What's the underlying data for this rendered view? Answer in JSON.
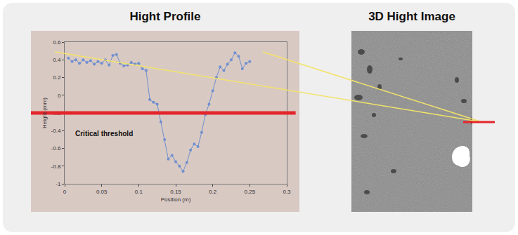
{
  "panels": [
    {
      "title": "Hight Profile"
    },
    {
      "title": "3D Hight Image"
    }
  ],
  "chart_data": {
    "type": "line",
    "color": "#6f8fcf",
    "marker": "circle",
    "grid": false,
    "x_label": "Position (m)",
    "y_label": "Height (mm)",
    "x": [
      0.005,
      0.01,
      0.015,
      0.02,
      0.025,
      0.03,
      0.035,
      0.04,
      0.045,
      0.05,
      0.055,
      0.06,
      0.065,
      0.07,
      0.075,
      0.08,
      0.085,
      0.09,
      0.095,
      0.1,
      0.105,
      0.11,
      0.115,
      0.12,
      0.125,
      0.13,
      0.135,
      0.14,
      0.145,
      0.15,
      0.155,
      0.16,
      0.165,
      0.17,
      0.175,
      0.18,
      0.185,
      0.19,
      0.195,
      0.2,
      0.205,
      0.21,
      0.215,
      0.22,
      0.225,
      0.23,
      0.235,
      0.24,
      0.245,
      0.25
    ],
    "values": [
      0.42,
      0.38,
      0.4,
      0.36,
      0.4,
      0.37,
      0.39,
      0.35,
      0.38,
      0.36,
      0.4,
      0.34,
      0.45,
      0.46,
      0.36,
      0.33,
      0.34,
      0.37,
      0.35,
      0.36,
      0.3,
      0.28,
      -0.05,
      -0.08,
      -0.1,
      -0.3,
      -0.5,
      -0.72,
      -0.68,
      -0.75,
      -0.8,
      -0.86,
      -0.76,
      -0.62,
      -0.55,
      -0.58,
      -0.42,
      -0.22,
      -0.1,
      0.05,
      0.2,
      0.32,
      0.28,
      0.35,
      0.4,
      0.48,
      0.44,
      0.3,
      0.36,
      0.38
    ],
    "xlim": [
      0,
      0.3
    ],
    "xticks": [
      0,
      0.05,
      0.1,
      0.15,
      0.2,
      0.25,
      0.3
    ],
    "ylim": [
      -1,
      0.6
    ],
    "yticks": [
      -1,
      -0.8,
      -0.6,
      -0.4,
      -0.2,
      0,
      0.2,
      0.4,
      0.6
    ],
    "annotations": [
      {
        "text": "Critical threshold",
        "y": -0.2,
        "color": "#e3262b"
      }
    ]
  }
}
